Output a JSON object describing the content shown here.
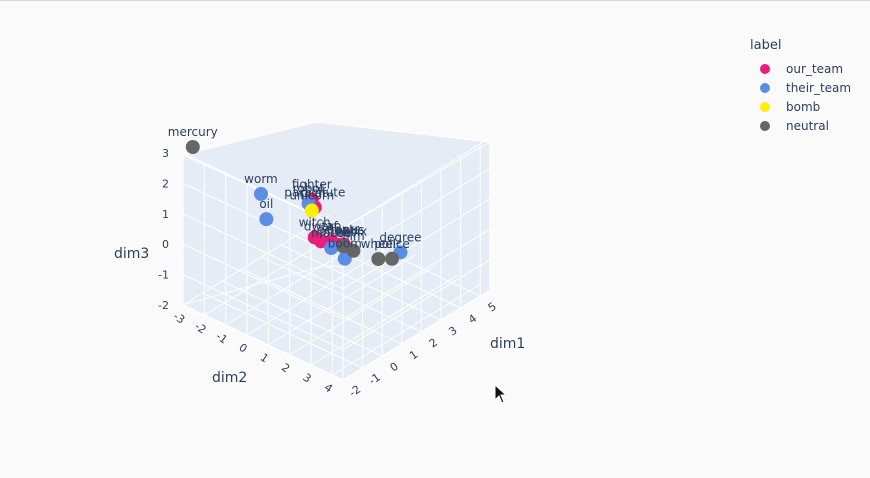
{
  "legend": {
    "title": "label",
    "items": [
      {
        "label": "our_team",
        "color": "#e91e7a"
      },
      {
        "label": "their_team",
        "color": "#5b8ce6"
      },
      {
        "label": "bomb",
        "color": "#ffee00"
      },
      {
        "label": "neutral",
        "color": "#666666"
      }
    ]
  },
  "chart_data": {
    "type": "scatter",
    "axes": {
      "x": {
        "title": "dim1",
        "ticks": [
          "-2",
          "-1",
          "0",
          "1",
          "2",
          "3",
          "4",
          "5"
        ]
      },
      "y": {
        "title": "dim2",
        "ticks": [
          "-3",
          "-2",
          "-1",
          "0",
          "1",
          "2",
          "3",
          "4"
        ]
      },
      "z": {
        "title": "dim3",
        "ticks": [
          "-2",
          "-1",
          "0",
          "1",
          "2",
          "3"
        ]
      }
    },
    "series": [
      {
        "name": "our_team",
        "color": "#e91e7a",
        "points": [
          {
            "label": "fighter",
            "x": -1.2,
            "y": 2.3,
            "z": 2.9
          },
          {
            "label": "pilot",
            "x": -1.0,
            "y": 2.2,
            "z": 2.5
          },
          {
            "label": "parachute",
            "x": -0.5,
            "y": 1.8,
            "z": 2.2
          },
          {
            "label": "witch",
            "x": 0.8,
            "y": 0.6,
            "z": 0.3
          },
          {
            "label": "tap",
            "x": 1.0,
            "y": 1.2,
            "z": 0.3
          },
          {
            "label": "dwarf",
            "x": 0.9,
            "y": 0.8,
            "z": 0.2
          },
          {
            "label": "pants",
            "x": 1.4,
            "y": 1.4,
            "z": 0.1
          },
          {
            "label": "bat",
            "x": 1.3,
            "y": 1.6,
            "z": 0.1
          },
          {
            "label": "octopus",
            "x": 0.6,
            "y": 2.0,
            "z": 0.6
          }
        ]
      },
      {
        "name": "their_team",
        "color": "#5b8ce6",
        "points": [
          {
            "label": "robot",
            "x": -0.6,
            "y": 1.6,
            "z": 2.3
          },
          {
            "label": "worm",
            "x": -0.2,
            "y": -1.0,
            "z": 1.6
          },
          {
            "label": "oil",
            "x": 1.6,
            "y": -2.4,
            "z": -0.4
          },
          {
            "label": "boom",
            "x": 1.9,
            "y": 1.0,
            "z": -0.7
          },
          {
            "label": "degree",
            "x": 3.0,
            "y": 2.6,
            "z": -0.4
          },
          {
            "label": "mouse",
            "x": 1.1,
            "y": 1.1,
            "z": 0.0
          }
        ]
      },
      {
        "name": "bomb",
        "color": "#ffee00",
        "points": [
          {
            "label": "unicorn",
            "x": 0.0,
            "y": 1.2,
            "z": 1.7
          }
        ]
      },
      {
        "name": "neutral",
        "color": "#666666",
        "points": [
          {
            "label": "mercury",
            "x": -1.5,
            "y": -3.0,
            "z": 3.0
          },
          {
            "label": "police",
            "x": 0.5,
            "y": 4.5,
            "z": 1.0
          },
          {
            "label": "phoenix",
            "x": 0.3,
            "y": 2.4,
            "z": 0.8
          },
          {
            "label": "film",
            "x": 0.6,
            "y": 2.6,
            "z": 0.6
          },
          {
            "label": "wheel",
            "x": 2.2,
            "y": 2.3,
            "z": -0.4
          }
        ]
      }
    ]
  }
}
